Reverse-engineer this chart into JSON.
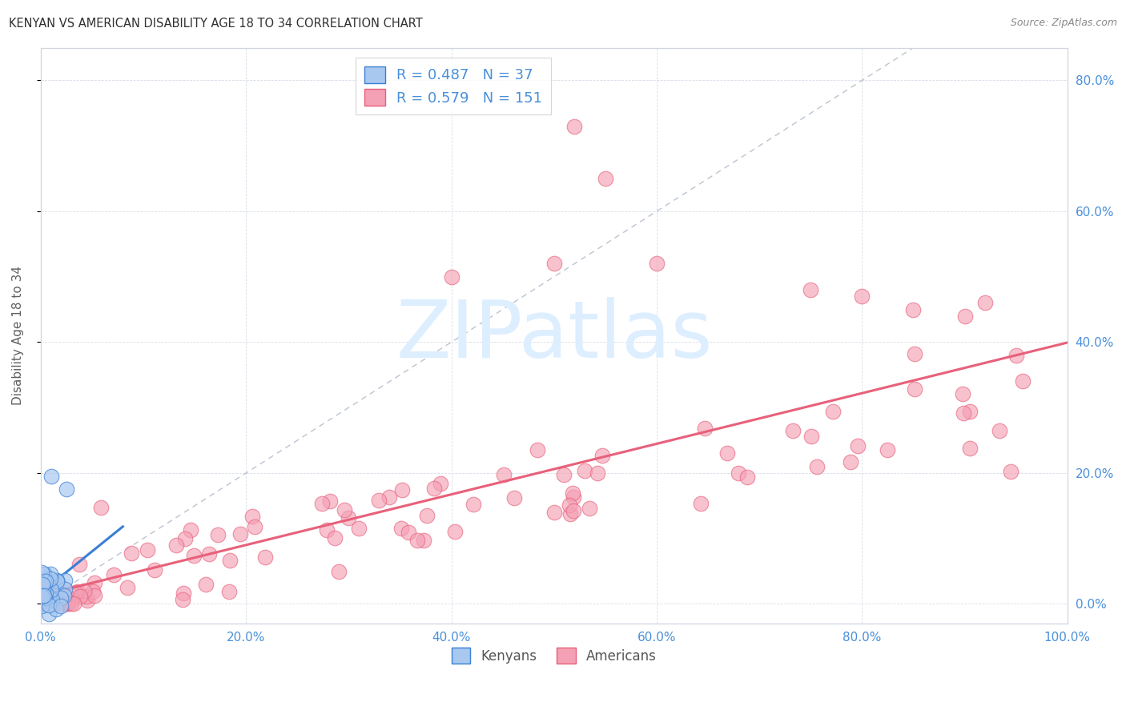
{
  "title": "KENYAN VS AMERICAN DISABILITY AGE 18 TO 34 CORRELATION CHART",
  "source": "Source: ZipAtlas.com",
  "ylabel": "Disability Age 18 to 34",
  "xlim": [
    0,
    1.0
  ],
  "ylim": [
    -0.03,
    0.85
  ],
  "x_tick_vals": [
    0.0,
    0.2,
    0.4,
    0.6,
    0.8,
    1.0
  ],
  "x_tick_labels": [
    "0.0%",
    "20.0%",
    "40.0%",
    "60.0%",
    "80.0%",
    "100.0%"
  ],
  "y_tick_vals": [
    0.0,
    0.2,
    0.4,
    0.6,
    0.8
  ],
  "y_tick_labels": [
    "0.0%",
    "20.0%",
    "40.0%",
    "60.0%",
    "80.0%"
  ],
  "kenyan_R": 0.487,
  "kenyan_N": 37,
  "american_R": 0.579,
  "american_N": 151,
  "kenyan_color": "#a8c8f0",
  "american_color": "#f4a0b5",
  "kenyan_line_color": "#3a7fd4",
  "american_line_color": "#e8607a",
  "diagonal_color": "#b0b8c8",
  "watermark_text": "ZIPatlas",
  "watermark_color": "#ddeeff",
  "background_color": "#ffffff",
  "grid_color": "#d8dde8",
  "spine_color": "#d0d5e0",
  "title_color": "#303030",
  "source_color": "#888888",
  "tick_color": "#4a90d9",
  "ylabel_color": "#606060"
}
